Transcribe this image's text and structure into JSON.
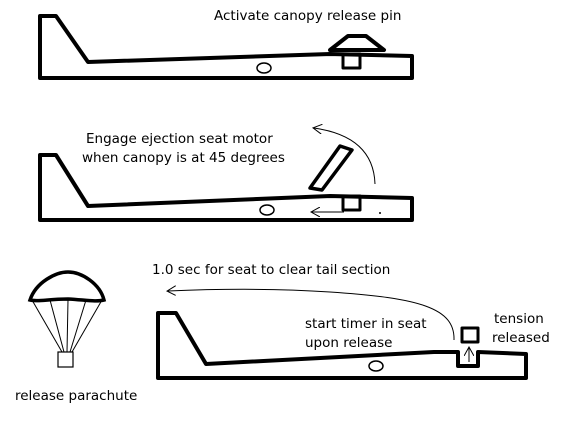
{
  "steps": [
    {
      "label": "Activate canopy release pin"
    },
    {
      "label_line1": "Engage ejection seat motor",
      "label_line2": "when canopy is at 45 degrees"
    },
    {
      "label": "1.0 sec for seat to clear tail section",
      "timer_line1": "start timer in seat",
      "timer_line2": "upon release",
      "tension_line1": "tension",
      "tension_line2": "released"
    }
  ],
  "parachute": {
    "label": "release parachute"
  },
  "colors": {
    "ink": "#000000",
    "background": "#ffffff"
  }
}
